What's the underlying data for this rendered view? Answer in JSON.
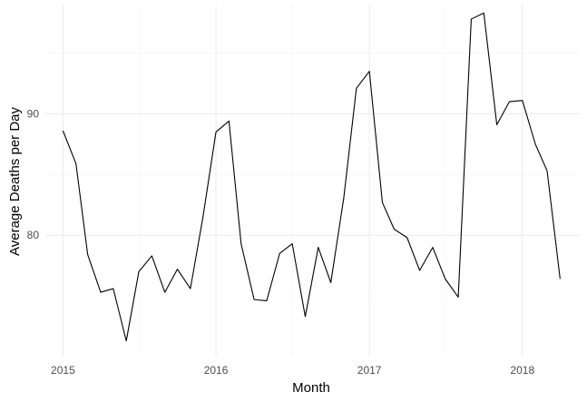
{
  "chart_data": {
    "type": "line",
    "xlabel": "Month",
    "ylabel": "Average Deaths per Day",
    "x_ticks": [
      {
        "date": "2015-01-01",
        "label": "2015"
      },
      {
        "date": "2016-01-01",
        "label": "2016"
      },
      {
        "date": "2017-01-01",
        "label": "2017"
      },
      {
        "date": "2018-01-01",
        "label": "2018"
      }
    ],
    "y_ticks": [
      80,
      90
    ],
    "ylim": [
      70,
      99
    ],
    "xlim": [
      "2014-11-20",
      "2018-05-20"
    ],
    "grid": true,
    "colors": {
      "line": "#000000",
      "grid_major": "#ebebeb",
      "grid_minor": "#f4f4f4"
    },
    "series": [
      {
        "x": [
          "2015-01-01",
          "2015-02-01",
          "2015-03-01",
          "2015-04-01",
          "2015-05-01",
          "2015-06-01",
          "2015-07-01",
          "2015-08-01",
          "2015-09-01",
          "2015-10-01",
          "2015-11-01",
          "2015-12-01",
          "2016-01-01",
          "2016-02-01",
          "2016-03-01",
          "2016-04-01",
          "2016-05-01",
          "2016-06-01",
          "2016-07-01",
          "2016-08-01",
          "2016-09-01",
          "2016-10-01",
          "2016-11-01",
          "2016-12-01",
          "2017-01-01",
          "2017-02-01",
          "2017-03-01",
          "2017-04-01",
          "2017-05-01",
          "2017-06-01",
          "2017-07-01",
          "2017-08-01",
          "2017-09-01",
          "2017-10-01",
          "2017-11-01",
          "2017-12-01",
          "2018-01-01",
          "2018-02-01",
          "2018-03-01",
          "2018-04-01"
        ],
        "y": [
          88.6,
          85.9,
          78.4,
          75.3,
          75.6,
          71.3,
          77.0,
          78.3,
          75.3,
          77.2,
          75.6,
          81.5,
          88.5,
          89.4,
          79.3,
          74.7,
          74.6,
          78.5,
          79.3,
          73.3,
          79.0,
          76.1,
          83.1,
          92.1,
          93.5,
          82.7,
          80.5,
          79.8,
          77.1,
          79.0,
          76.4,
          74.9,
          97.8,
          98.3,
          89.1,
          91.0,
          91.1,
          87.5,
          85.3,
          76.4
        ]
      }
    ]
  }
}
